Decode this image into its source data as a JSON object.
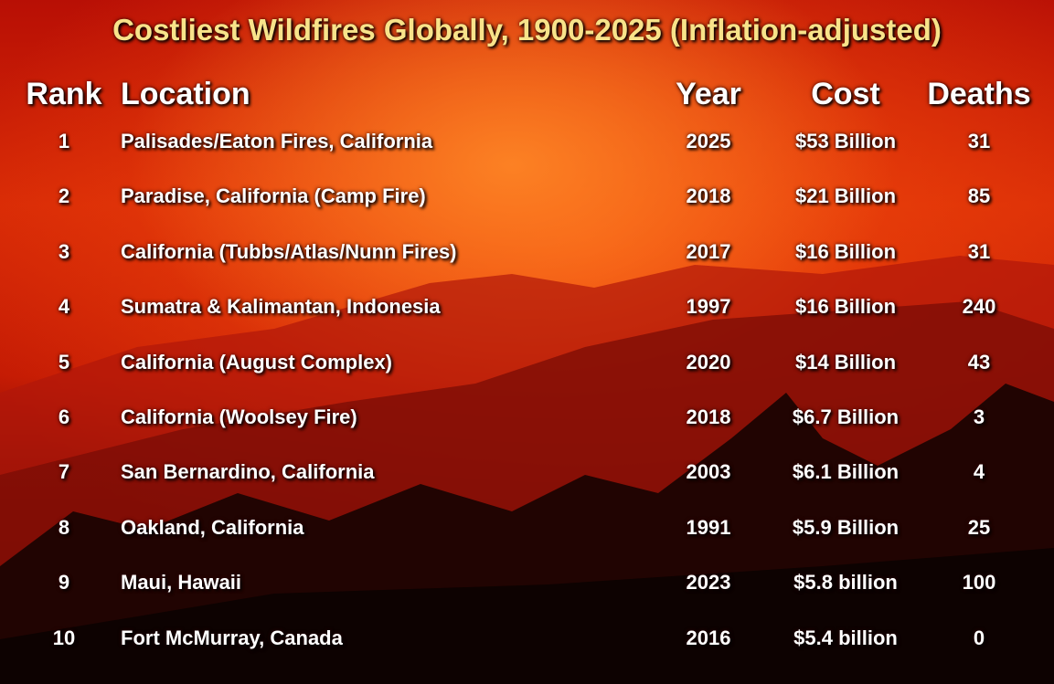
{
  "title": "Costliest Wildfires Globally, 1900-2025 (Inflation-adjusted)",
  "table": {
    "headers": [
      "Rank",
      "Location",
      "Year",
      "Cost",
      "Deaths"
    ],
    "rows": [
      [
        "1",
        "Palisades/Eaton Fires, California",
        "2025",
        "$53 Billion",
        "31"
      ],
      [
        "2",
        "Paradise, California (Camp Fire)",
        "2018",
        "$21 Billion",
        "85"
      ],
      [
        "3",
        "California (Tubbs/Atlas/Nunn Fires)",
        "2017",
        "$16 Billion",
        "31"
      ],
      [
        "4",
        "Sumatra & Kalimantan, Indonesia",
        "1997",
        "$16 Billion",
        "240"
      ],
      [
        "5",
        "California (August Complex)",
        "2020",
        "$14 Billion",
        "43"
      ],
      [
        "6",
        "California (Woolsey Fire)",
        "2018",
        "$6.7 Billion",
        "3"
      ],
      [
        "7",
        "San Bernardino, California",
        "2003",
        "$6.1 Billion",
        "4"
      ],
      [
        "8",
        "Oakland, California",
        "1991",
        "$5.9 Billion",
        "25"
      ],
      [
        "9",
        "Maui, Hawaii",
        "2023",
        "$5.8 billion",
        "100"
      ],
      [
        "10",
        "Fort McMurray, Canada",
        "2016",
        "$5.4 billion",
        "0"
      ]
    ]
  }
}
